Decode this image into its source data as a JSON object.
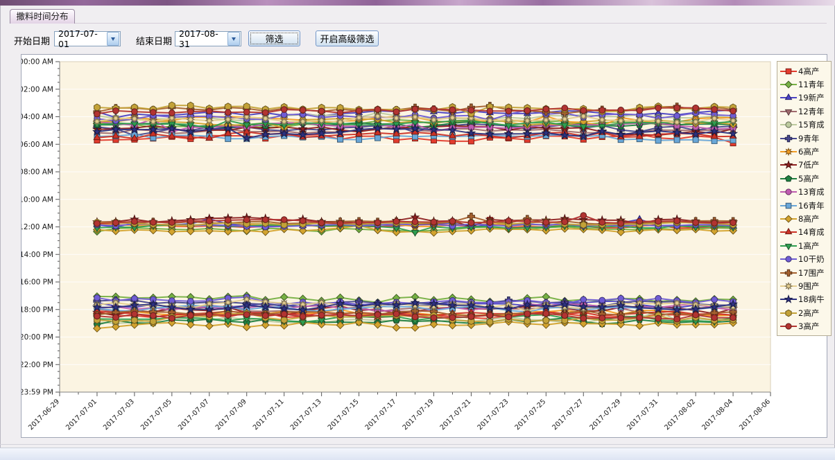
{
  "window": {
    "tab_label": "撒料时间分布"
  },
  "controls": {
    "start_label": "开始日期",
    "start_value": "2017-07-01",
    "end_label": "结束日期",
    "end_value": "2017-08-31",
    "filter_button": "筛选",
    "advanced_button": "开启高级筛选"
  },
  "chart_data": {
    "type": "line",
    "title": "",
    "legend_position": "right",
    "grid": "horizontal",
    "note": "Feed-scattering time-of-day per cattle group, one point per day. Three daily feeding bands: early morning (~03:20-05:40), noon (~11:30-12:20), evening (~17:20-19:10). base_hour = typical time (decimal hours), amp = daily variation read from the plot.",
    "x_axis": {
      "start_date": "2017-06-29",
      "end_date": "2017-08-06",
      "data_first_date": "2017-07-01",
      "data_last_date": "2017-08-04",
      "data_day_count": 35,
      "tick_labels": [
        "2017-06-29",
        "2017-07-01",
        "2017-07-03",
        "2017-07-05",
        "2017-07-07",
        "2017-07-09",
        "2017-07-11",
        "2017-07-13",
        "2017-07-15",
        "2017-07-17",
        "2017-07-19",
        "2017-07-21",
        "2017-07-23",
        "2017-07-25",
        "2017-07-27",
        "2017-07-29",
        "2017-07-31",
        "2017-08-02",
        "2017-08-04",
        "2017-08-06"
      ]
    },
    "y_axis": {
      "tick_labels": [
        "00:00 AM",
        "02:00 AM",
        "04:00 AM",
        "06:00 AM",
        "08:00 AM",
        "10:00 AM",
        "12:00 AM",
        "14:00 PM",
        "16:00 PM",
        "18:00 PM",
        "20:00 PM",
        "22:00 PM",
        "23:59 PM"
      ],
      "hours_range": [
        0,
        24
      ],
      "major_step_hours": 2,
      "minor_step_hours": 0.5
    },
    "plot_bg_color": "#fbf4e2",
    "series": [
      {
        "name": "4高产",
        "color": "#e23b2d",
        "marker": "square",
        "bands": {
          "morning": {
            "base_hour": 5.55,
            "amp": 0.28
          },
          "noon": {
            "base_hour": 11.95,
            "amp": 0.15
          },
          "evening": {
            "base_hour": 18.35,
            "amp": 0.28
          }
        }
      },
      {
        "name": "11青年",
        "color": "#76b043",
        "marker": "diamond",
        "bands": {
          "morning": {
            "base_hour": 4.45,
            "amp": 0.28
          },
          "noon": {
            "base_hour": 12.15,
            "amp": 0.18
          },
          "evening": {
            "base_hour": 17.3,
            "amp": 0.3
          }
        }
      },
      {
        "name": "19新产",
        "color": "#4a42c4",
        "marker": "triangle-up",
        "bands": {
          "morning": {
            "base_hour": 3.75,
            "amp": 0.25
          },
          "noon": {
            "base_hour": 11.8,
            "amp": 0.13
          },
          "evening": {
            "base_hour": 17.65,
            "amp": 0.27
          }
        }
      },
      {
        "name": "12青年",
        "color": "#a06a6e",
        "marker": "triangle-down",
        "bands": {
          "morning": {
            "base_hour": 5.05,
            "amp": 0.3
          },
          "evening": {
            "base_hour": 18.05,
            "amp": 0.28
          }
        }
      },
      {
        "name": "15育成",
        "color": "#bcca9e",
        "marker": "circle",
        "bands": {
          "morning": {
            "base_hour": 4.05,
            "amp": 0.26
          },
          "evening": {
            "base_hour": 18.75,
            "amp": 0.26
          }
        }
      },
      {
        "name": "9青年",
        "color": "#47478e",
        "marker": "cross",
        "bands": {
          "morning": {
            "base_hour": 4.85,
            "amp": 0.3
          },
          "evening": {
            "base_hour": 17.55,
            "amp": 0.28
          }
        }
      },
      {
        "name": "6高产",
        "color": "#f29d26",
        "marker": "flower",
        "bands": {
          "morning": {
            "base_hour": 4.25,
            "amp": 0.3
          },
          "noon": {
            "base_hour": 11.9,
            "amp": 0.15
          },
          "evening": {
            "base_hour": 18.2,
            "amp": 0.28
          }
        }
      },
      {
        "name": "7低产",
        "color": "#8e2020",
        "marker": "star",
        "bands": {
          "morning": {
            "base_hour": 4.95,
            "amp": 0.38
          },
          "noon": {
            "base_hour": 11.55,
            "amp": 0.2
          },
          "evening": {
            "base_hour": 18.1,
            "amp": 0.38
          }
        }
      },
      {
        "name": "5高产",
        "color": "#1f7f41",
        "marker": "pentagon",
        "bands": {
          "morning": {
            "base_hour": 4.6,
            "amp": 0.26
          },
          "evening": {
            "base_hour": 18.85,
            "amp": 0.26
          }
        }
      },
      {
        "name": "13育成",
        "color": "#bf5cb0",
        "marker": "circle",
        "bands": {
          "morning": {
            "base_hour": 4.75,
            "amp": 0.28
          },
          "evening": {
            "base_hour": 17.85,
            "amp": 0.28
          }
        }
      },
      {
        "name": "16青年",
        "color": "#69a7d8",
        "marker": "square",
        "bands": {
          "morning": {
            "base_hour": 5.5,
            "amp": 0.24
          },
          "evening": {
            "base_hour": 17.95,
            "amp": 0.26
          }
        }
      },
      {
        "name": "8高产",
        "color": "#d3a32e",
        "marker": "diamond",
        "bands": {
          "morning": {
            "base_hour": 4.35,
            "amp": 0.28
          },
          "noon": {
            "base_hour": 12.25,
            "amp": 0.2
          },
          "evening": {
            "base_hour": 19.1,
            "amp": 0.3
          }
        }
      },
      {
        "name": "14育成",
        "color": "#cc3226",
        "marker": "triangle-up",
        "bands": {
          "morning": {
            "base_hour": 5.35,
            "amp": 0.3
          },
          "evening": {
            "base_hour": 18.4,
            "amp": 0.28
          }
        }
      },
      {
        "name": "1高产",
        "color": "#2f9e50",
        "marker": "triangle-down",
        "bands": {
          "morning": {
            "base_hour": 4.5,
            "amp": 0.26
          },
          "noon": {
            "base_hour": 12.0,
            "amp": 0.15
          },
          "evening": {
            "base_hour": 18.65,
            "amp": 0.26
          }
        }
      },
      {
        "name": "10干奶",
        "color": "#6f5cd4",
        "marker": "circle",
        "bands": {
          "morning": {
            "base_hour": 3.95,
            "amp": 0.3
          },
          "noon": {
            "base_hour": 11.85,
            "amp": 0.14
          },
          "evening": {
            "base_hour": 17.4,
            "amp": 0.3
          }
        }
      },
      {
        "name": "17围产",
        "color": "#a5612f",
        "marker": "cross",
        "bands": {
          "morning": {
            "base_hour": 3.45,
            "amp": 0.28
          },
          "noon": {
            "base_hour": 11.7,
            "amp": 0.15
          },
          "evening": {
            "base_hour": 18.25,
            "amp": 0.28
          }
        }
      },
      {
        "name": "9围产",
        "color": "#e3cd8f",
        "marker": "flower",
        "bands": {
          "morning": {
            "base_hour": 4.15,
            "amp": 0.28
          },
          "evening": {
            "base_hour": 17.7,
            "amp": 0.28
          }
        }
      },
      {
        "name": "18病牛",
        "color": "#2d3180",
        "marker": "star",
        "bands": {
          "morning": {
            "base_hour": 5.1,
            "amp": 0.3
          },
          "evening": {
            "base_hour": 17.75,
            "amp": 0.28
          }
        }
      },
      {
        "name": "2高产",
        "color": "#c3a238",
        "marker": "hexagon",
        "bands": {
          "morning": {
            "base_hour": 3.35,
            "amp": 0.24
          },
          "noon": {
            "base_hour": 11.75,
            "amp": 0.14
          },
          "evening": {
            "base_hour": 18.6,
            "amp": 0.3
          }
        }
      },
      {
        "name": "3高产",
        "color": "#b23431",
        "marker": "circle",
        "bands": {
          "morning": {
            "base_hour": 3.55,
            "amp": 0.26
          },
          "noon": {
            "base_hour": 11.65,
            "amp": 0.14
          },
          "evening": {
            "base_hour": 18.5,
            "amp": 0.28
          }
        }
      }
    ]
  }
}
